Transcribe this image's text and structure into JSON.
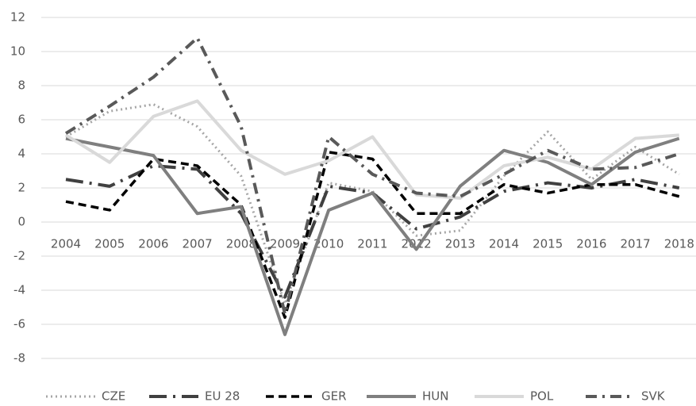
{
  "chart_data": {
    "type": "line",
    "categories": [
      "2004",
      "2005",
      "2006",
      "2007",
      "2008",
      "2009",
      "2010",
      "2011",
      "2012",
      "2013",
      "2014",
      "2015",
      "2016",
      "2017",
      "2018"
    ],
    "series": [
      {
        "name": "CZE",
        "color": "#a6a6a6",
        "style": "dotted",
        "values": [
          5.0,
          6.5,
          6.9,
          5.6,
          2.7,
          -4.8,
          2.3,
          1.8,
          -0.8,
          -0.5,
          2.7,
          5.3,
          2.5,
          4.4,
          2.8
        ]
      },
      {
        "name": "EU 28",
        "color": "#404040",
        "style": "long-dash-dot",
        "values": [
          2.5,
          2.1,
          3.3,
          3.1,
          0.5,
          -4.4,
          2.1,
          1.7,
          -0.4,
          0.3,
          1.8,
          2.3,
          2.0,
          2.5,
          2.0
        ]
      },
      {
        "name": "GER",
        "color": "#000000",
        "style": "dash",
        "values": [
          1.2,
          0.7,
          3.7,
          3.3,
          1.0,
          -5.6,
          4.1,
          3.7,
          0.5,
          0.5,
          2.2,
          1.7,
          2.2,
          2.2,
          1.5
        ]
      },
      {
        "name": "HUN",
        "color": "#7f7f7f",
        "style": "solid",
        "values": [
          4.9,
          4.4,
          3.9,
          0.5,
          0.9,
          -6.6,
          0.7,
          1.7,
          -1.6,
          2.1,
          4.2,
          3.5,
          2.2,
          4.1,
          4.9
        ]
      },
      {
        "name": "POL",
        "color": "#d9d9d9",
        "style": "solid",
        "values": [
          5.1,
          3.5,
          6.2,
          7.1,
          4.2,
          2.8,
          3.6,
          5.0,
          1.6,
          1.4,
          3.3,
          3.8,
          3.1,
          4.9,
          5.1
        ]
      },
      {
        "name": "SVK",
        "color": "#595959",
        "style": "dash-dot",
        "values": [
          5.2,
          6.8,
          8.5,
          10.8,
          5.6,
          -5.4,
          5.0,
          2.8,
          1.7,
          1.5,
          2.8,
          4.2,
          3.1,
          3.2,
          4.0
        ]
      }
    ],
    "ylim": [
      -8,
      12
    ],
    "yticks": [
      -8,
      -6,
      -4,
      -2,
      0,
      2,
      4,
      6,
      8,
      10,
      12
    ],
    "grid": true,
    "legend": "bottom"
  }
}
